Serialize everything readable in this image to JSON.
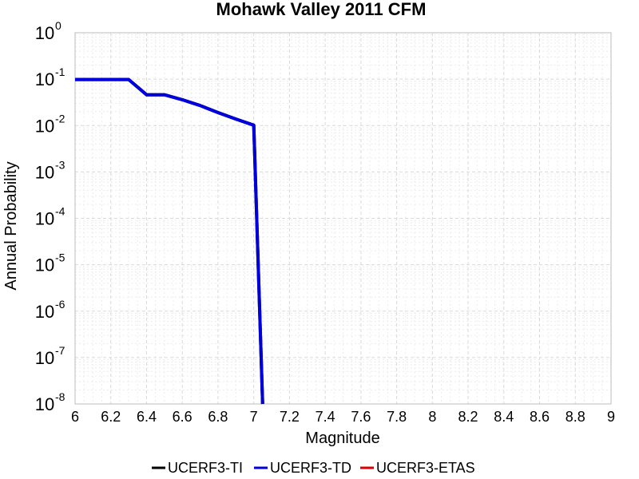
{
  "chart_data": {
    "type": "line",
    "title": "Mohawk Valley 2011 CFM",
    "xlabel": "Magnitude",
    "ylabel": "Annual Probability",
    "xlim": [
      6,
      9
    ],
    "ylim": [
      1e-08,
      1
    ],
    "yscale": "log",
    "grid": true,
    "legend_position": "bottom",
    "x_ticks": [
      "6",
      "6.2",
      "6.4",
      "6.6",
      "6.8",
      "7",
      "7.2",
      "7.4",
      "7.6",
      "7.8",
      "8",
      "8.2",
      "8.4",
      "8.6",
      "8.8",
      "9"
    ],
    "y_ticks": [
      {
        "base": "10",
        "exp": "0"
      },
      {
        "base": "10",
        "exp": "-1"
      },
      {
        "base": "10",
        "exp": "-2"
      },
      {
        "base": "10",
        "exp": "-3"
      },
      {
        "base": "10",
        "exp": "-4"
      },
      {
        "base": "10",
        "exp": "-5"
      },
      {
        "base": "10",
        "exp": "-6"
      },
      {
        "base": "10",
        "exp": "-7"
      },
      {
        "base": "10",
        "exp": "-8"
      }
    ],
    "series": [
      {
        "name": "UCERF3-TI",
        "color": "#000000",
        "x": [
          6.0,
          6.1,
          6.2,
          6.3,
          6.4,
          6.5,
          6.6,
          6.7,
          6.8,
          6.9,
          7.0,
          7.05
        ],
        "y": [
          0.098,
          0.098,
          0.098,
          0.098,
          0.046,
          0.046,
          0.036,
          0.027,
          0.019,
          0.0138,
          0.0102,
          1e-08
        ]
      },
      {
        "name": "UCERF3-TD",
        "color": "#0000dd",
        "x": [
          6.0,
          6.1,
          6.2,
          6.3,
          6.4,
          6.5,
          6.6,
          6.7,
          6.8,
          6.9,
          7.0,
          7.05
        ],
        "y": [
          0.098,
          0.098,
          0.098,
          0.098,
          0.046,
          0.046,
          0.036,
          0.027,
          0.019,
          0.0138,
          0.0102,
          1e-08
        ]
      },
      {
        "name": "UCERF3-ETAS",
        "color": "#dd0000",
        "x": [],
        "y": []
      }
    ]
  }
}
